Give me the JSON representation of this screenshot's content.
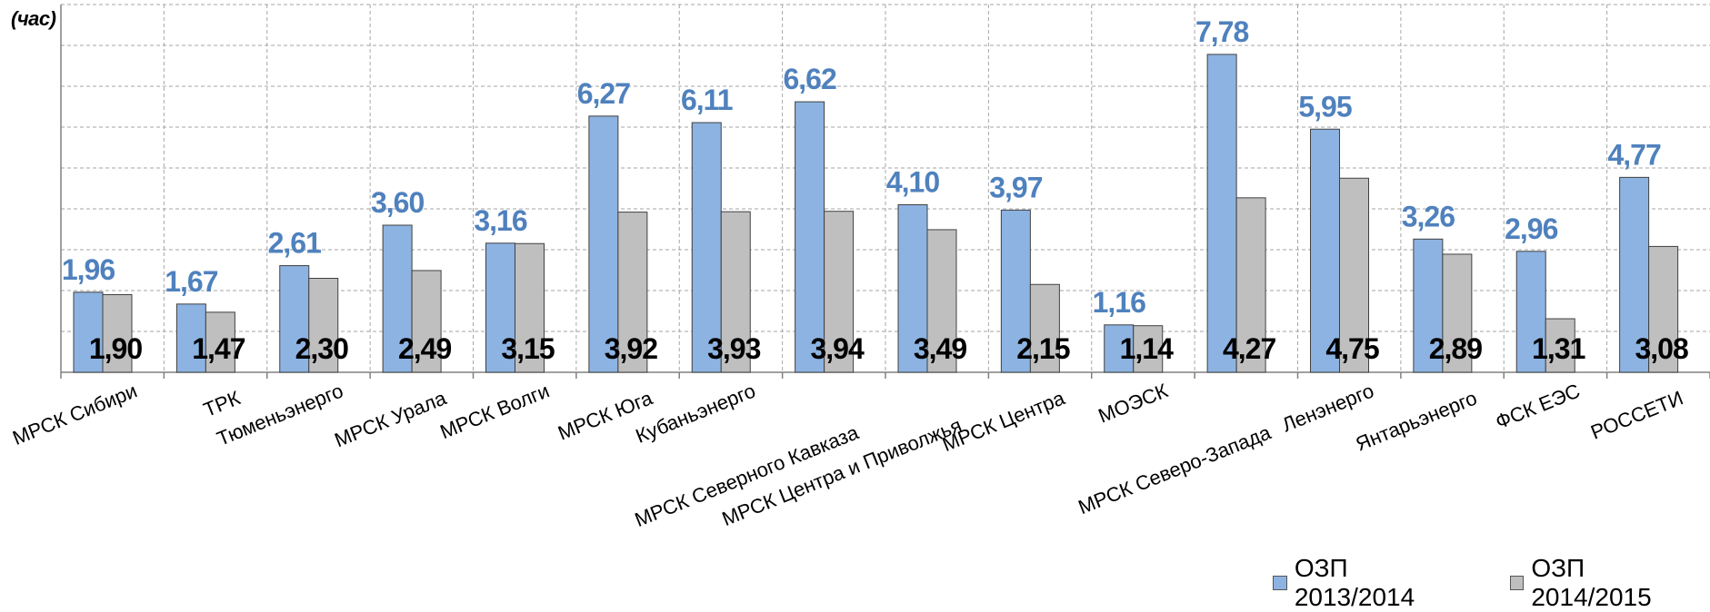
{
  "unit_label": "(час)",
  "colors": {
    "series1": "#8DB3E2",
    "series2": "#BFBFBF",
    "label1": "#4F81BD",
    "label2": "#000000",
    "grid": "#A6A6A6"
  },
  "chart_data": {
    "type": "bar",
    "categories": [
      "МРСК Сибири",
      "ТРК",
      "Тюменьэнерго",
      "МРСК Урала",
      "МРСК Волги",
      "МРСК Юга",
      "Кубаньэнерго",
      "МРСК Северного Кавказа",
      "МРСК Центра и Приволжья",
      "МРСК Центра",
      "МОЭСК",
      "МРСК Северо-Запада",
      "Ленэнерго",
      "Янтарьэнерго",
      "ФСК ЕЭС",
      "РОССЕТИ"
    ],
    "series": [
      {
        "name": "ОЗП 2013/2014",
        "values": [
          1.96,
          1.67,
          2.61,
          3.6,
          3.16,
          6.27,
          6.11,
          6.62,
          4.1,
          3.97,
          1.16,
          7.78,
          5.95,
          3.26,
          2.96,
          4.77
        ],
        "labels": [
          "1,96",
          "1,67",
          "2,61",
          "3,60",
          "3,16",
          "6,27",
          "6,11",
          "6,62",
          "4,10",
          "3,97",
          "1,16",
          "7,78",
          "5,95",
          "3,26",
          "2,96",
          "4,77"
        ]
      },
      {
        "name": "ОЗП 2014/2015",
        "values": [
          1.9,
          1.47,
          2.3,
          2.49,
          3.15,
          3.92,
          3.93,
          3.94,
          3.49,
          2.15,
          1.14,
          4.27,
          4.75,
          2.89,
          1.31,
          3.08
        ],
        "labels": [
          "1,90",
          "1,47",
          "2,30",
          "2,49",
          "3,15",
          "3,92",
          "3,93",
          "3,94",
          "3,49",
          "2,15",
          "1,14",
          "4,27",
          "4,75",
          "2,89",
          "1,31",
          "3,08"
        ]
      }
    ],
    "ylabel": "(час)",
    "ylim": [
      0,
      9
    ],
    "grid": true,
    "legend_position": "bottom-right",
    "legend": [
      "ОЗП 2013/2014",
      "ОЗП 2014/2015"
    ]
  }
}
